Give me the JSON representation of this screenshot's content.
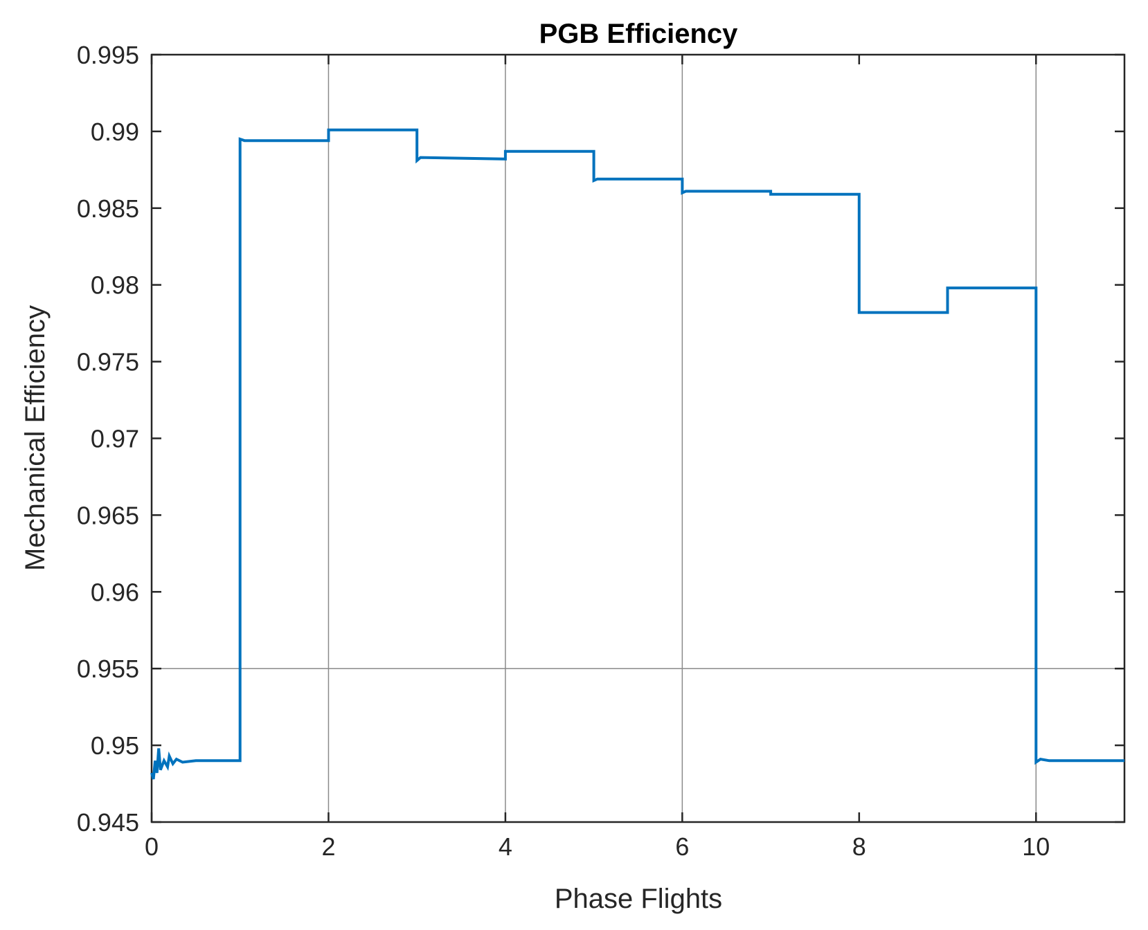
{
  "chart_data": {
    "type": "line",
    "title": "PGB Efficiency",
    "xlabel": "Phase Flights",
    "ylabel": "Mechanical Efficiency",
    "xlim": [
      0,
      11
    ],
    "ylim": [
      0.945,
      0.995
    ],
    "xticks": [
      0,
      2,
      4,
      6,
      8,
      10
    ],
    "yticks": [
      0.945,
      0.95,
      0.955,
      0.96,
      0.965,
      0.97,
      0.975,
      0.98,
      0.985,
      0.99,
      0.995
    ],
    "xtick_labels": [
      "0",
      "2",
      "4",
      "6",
      "8",
      "10"
    ],
    "ytick_labels": [
      "0.945",
      "0.95",
      "0.955",
      "0.96",
      "0.965",
      "0.97",
      "0.975",
      "0.98",
      "0.985",
      "0.99",
      "0.995"
    ],
    "grid": {
      "x_lines": [
        2,
        4,
        6,
        10
      ],
      "y_lines": [
        0.955
      ]
    },
    "line_color": "#0072BD",
    "series": [
      {
        "values": [
          {
            "x": 0.0,
            "y": 0.9482
          },
          {
            "x": 0.02,
            "y": 0.9478
          },
          {
            "x": 0.04,
            "y": 0.949
          },
          {
            "x": 0.06,
            "y": 0.9482
          },
          {
            "x": 0.08,
            "y": 0.9498
          },
          {
            "x": 0.1,
            "y": 0.9484
          },
          {
            "x": 0.14,
            "y": 0.949
          },
          {
            "x": 0.18,
            "y": 0.9486
          },
          {
            "x": 0.2,
            "y": 0.9493
          },
          {
            "x": 0.24,
            "y": 0.9488
          },
          {
            "x": 0.28,
            "y": 0.9491
          },
          {
            "x": 0.35,
            "y": 0.9489
          },
          {
            "x": 0.5,
            "y": 0.949
          },
          {
            "x": 1.0,
            "y": 0.949
          },
          {
            "x": 1.0,
            "y": 0.9895
          },
          {
            "x": 1.05,
            "y": 0.9894
          },
          {
            "x": 2.0,
            "y": 0.9894
          },
          {
            "x": 2.0,
            "y": 0.9901
          },
          {
            "x": 3.0,
            "y": 0.9901
          },
          {
            "x": 3.0,
            "y": 0.9881
          },
          {
            "x": 3.04,
            "y": 0.9883
          },
          {
            "x": 4.0,
            "y": 0.9882
          },
          {
            "x": 4.0,
            "y": 0.9887
          },
          {
            "x": 5.0,
            "y": 0.9887
          },
          {
            "x": 5.0,
            "y": 0.9868
          },
          {
            "x": 5.04,
            "y": 0.9869
          },
          {
            "x": 6.0,
            "y": 0.9869
          },
          {
            "x": 6.0,
            "y": 0.986
          },
          {
            "x": 6.04,
            "y": 0.9861
          },
          {
            "x": 7.0,
            "y": 0.9861
          },
          {
            "x": 7.0,
            "y": 0.9859
          },
          {
            "x": 8.0,
            "y": 0.9859
          },
          {
            "x": 8.0,
            "y": 0.9782
          },
          {
            "x": 9.0,
            "y": 0.9782
          },
          {
            "x": 9.0,
            "y": 0.9798
          },
          {
            "x": 10.0,
            "y": 0.9798
          },
          {
            "x": 10.0,
            "y": 0.9489
          },
          {
            "x": 10.05,
            "y": 0.9491
          },
          {
            "x": 10.15,
            "y": 0.949
          },
          {
            "x": 11.0,
            "y": 0.949
          }
        ]
      }
    ]
  }
}
